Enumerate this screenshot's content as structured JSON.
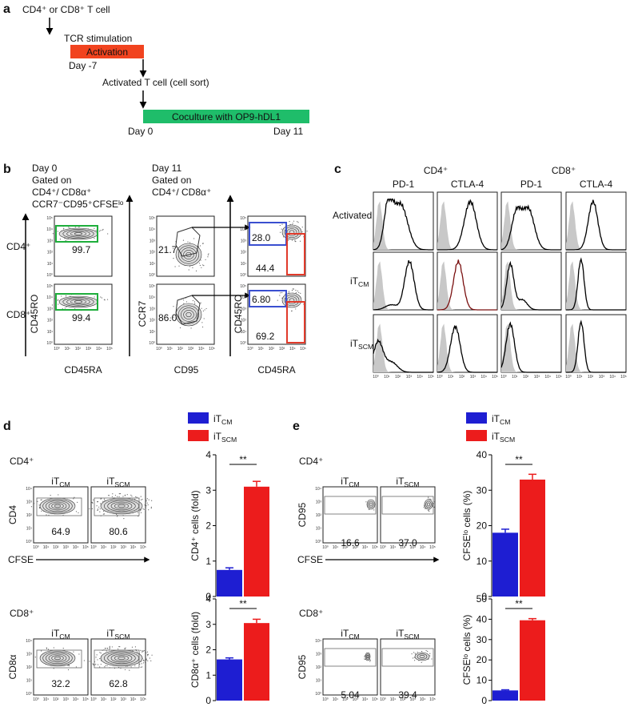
{
  "panel_a": {
    "label": "a",
    "start": "CD4⁺ or CD8⁺ T cell",
    "step1": "TCR stimulation",
    "activation": "Activation",
    "day_minus7": "Day -7",
    "step2": "Activated T cell (cell sort)",
    "coculture": "Coculture with OP9-hDL1",
    "day0": "Day 0",
    "day11": "Day 11"
  },
  "axis_ticks": [
    "10⁰",
    "10¹",
    "10²",
    "10³",
    "10⁴",
    "10⁵"
  ],
  "panel_b": {
    "label": "b",
    "day0": {
      "title": "Day 0",
      "gate_lines": [
        "Gated on",
        "CD4⁺/ CD8α⁺",
        "CCR7⁻CD95⁺CFSEˡᵒ"
      ]
    },
    "day11": {
      "title": "Day 11",
      "gate_lines": [
        "Gated on",
        "CD4⁺/ CD8α⁺"
      ]
    },
    "rows": [
      "CD4⁺",
      "CD8⁺"
    ],
    "axes": {
      "p1_y": "CD45RO",
      "p1_x": "CD45RA",
      "p2_y": "CCR7",
      "p2_x": "CD95",
      "p3_y": "CD45RO",
      "p3_x": "CD45RA"
    },
    "gates": {
      "day0": [
        "99.7",
        "99.4"
      ],
      "ccr7_cd95": [
        "21.7",
        "86.0"
      ],
      "cd45ro": [
        "28.0",
        "6.80"
      ],
      "cd45ra": [
        "44.4",
        "69.2"
      ]
    }
  },
  "panel_c": {
    "label": "c",
    "groups": [
      "CD4⁺",
      "CD8⁺"
    ],
    "markers": [
      "PD-1",
      "CTLA-4",
      "PD-1",
      "CTLA-4"
    ],
    "rows": [
      "Activated",
      {
        "base": "iT",
        "sub": "CM"
      },
      {
        "base": "iT",
        "sub": "SCM"
      }
    ]
  },
  "panel_d": {
    "label": "d",
    "legend": [
      {
        "name": {
          "base": "iT",
          "sub": "CM"
        },
        "color": "#1e1ed2"
      },
      {
        "name": {
          "base": "iT",
          "sub": "SCM"
        },
        "color": "#ec1c1c"
      }
    ],
    "rows": [
      {
        "title": "CD4⁺",
        "columns": [
          {
            "base": "iT",
            "sub": "CM"
          },
          {
            "base": "iT",
            "sub": "SCM"
          }
        ],
        "y_label": "CD4",
        "x_label": "CFSE",
        "gates": [
          "64.9",
          "80.6"
        ],
        "chart": {
          "type": "bar",
          "y_label": "CD4⁺ cells (fold)",
          "values": [
            0.75,
            3.1
          ],
          "errors": [
            0.06,
            0.15
          ],
          "ylim": [
            0,
            4
          ],
          "yticks": [
            0,
            1,
            2,
            3,
            4
          ],
          "significance": "**"
        }
      },
      {
        "title": "CD8⁺",
        "columns": [
          {
            "base": "iT",
            "sub": "CM"
          },
          {
            "base": "iT",
            "sub": "SCM"
          }
        ],
        "y_label": "CD8α",
        "x_label": "CFSE",
        "gates": [
          "32.2",
          "62.8"
        ],
        "chart": {
          "type": "bar",
          "y_label": "CD8α⁺ cells (fold)",
          "values": [
            1.62,
            3.05
          ],
          "errors": [
            0.06,
            0.15
          ],
          "ylim": [
            0,
            4
          ],
          "yticks": [
            0,
            1,
            2,
            3,
            4
          ],
          "significance": "**"
        }
      }
    ]
  },
  "panel_e": {
    "label": "e",
    "legend": [
      {
        "name": {
          "base": "iT",
          "sub": "CM"
        },
        "color": "#1e1ed2"
      },
      {
        "name": {
          "base": "iT",
          "sub": "SCM"
        },
        "color": "#ec1c1c"
      }
    ],
    "rows": [
      {
        "title": "CD4⁺",
        "columns": [
          {
            "base": "iT",
            "sub": "CM"
          },
          {
            "base": "iT",
            "sub": "SCM"
          }
        ],
        "y_label": "CD95",
        "x_label": "CFSE",
        "gates": [
          "16.6",
          "37.0"
        ],
        "chart": {
          "type": "bar",
          "y_label": "CFSEˡᵒ cells (%)",
          "values": [
            18,
            33
          ],
          "errors": [
            1,
            1.5
          ],
          "ylim": [
            0,
            40
          ],
          "yticks": [
            0,
            10,
            20,
            30,
            40
          ],
          "significance": "**"
        }
      },
      {
        "title": "CD8⁺",
        "columns": [
          {
            "base": "iT",
            "sub": "CM"
          },
          {
            "base": "iT",
            "sub": "SCM"
          }
        ],
        "y_label": "CD95",
        "x_label": "CFSE",
        "gates": [
          "5.04",
          "39.4"
        ],
        "chart": {
          "type": "bar",
          "y_label": "CFSEˡᵒ cells (%)",
          "values": [
            5,
            39.5
          ],
          "errors": [
            0.3,
            0.8
          ],
          "ylim": [
            0,
            50
          ],
          "yticks": [
            0,
            10,
            20,
            30,
            40,
            50
          ],
          "significance": "**"
        }
      }
    ]
  }
}
